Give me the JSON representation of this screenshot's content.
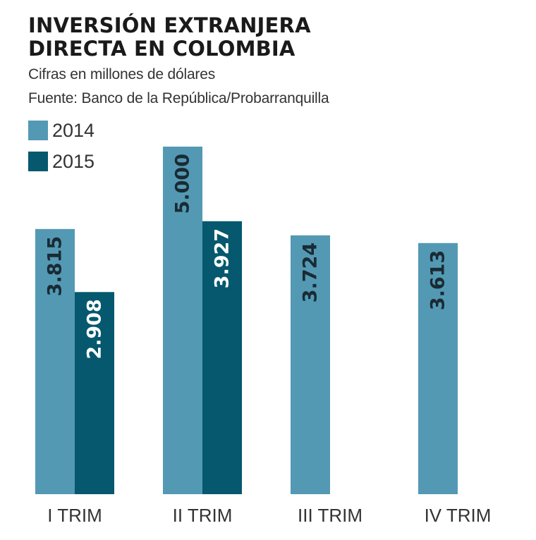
{
  "header": {
    "title_line1": "INVERSIÓN EXTRANJERA",
    "title_line2": "DIRECTA EN COLOMBIA",
    "subtitle": "Cifras en millones de dólares",
    "source": "Fuente: Banco de la República/Probarranquilla"
  },
  "colors": {
    "series_2014": "#5399b4",
    "series_2015": "#05586e",
    "label_on_2014": "#1a2a33",
    "label_on_2015": "#ffffff"
  },
  "chart_data": {
    "type": "bar",
    "title": "INVERSIÓN EXTRANJERA DIRECTA EN COLOMBIA",
    "subtitle": "Cifras en millones de dólares",
    "categories": [
      "I TRIM",
      "II TRIM",
      "III TRIM",
      "IV TRIM"
    ],
    "series": [
      {
        "name": "2014",
        "values": [
          3815,
          5000,
          3724,
          3613
        ],
        "labels": [
          "3.815",
          "5.000",
          "3.724",
          "3.613"
        ]
      },
      {
        "name": "2015",
        "values": [
          2908,
          3927,
          null,
          null
        ],
        "labels": [
          "2.908",
          "3.927",
          "",
          ""
        ]
      }
    ],
    "xlabel": "",
    "ylabel": "",
    "ylim": [
      0,
      5000
    ],
    "grid": false,
    "legend_position": "top-left",
    "data_labels": "inside-top-rotated"
  }
}
